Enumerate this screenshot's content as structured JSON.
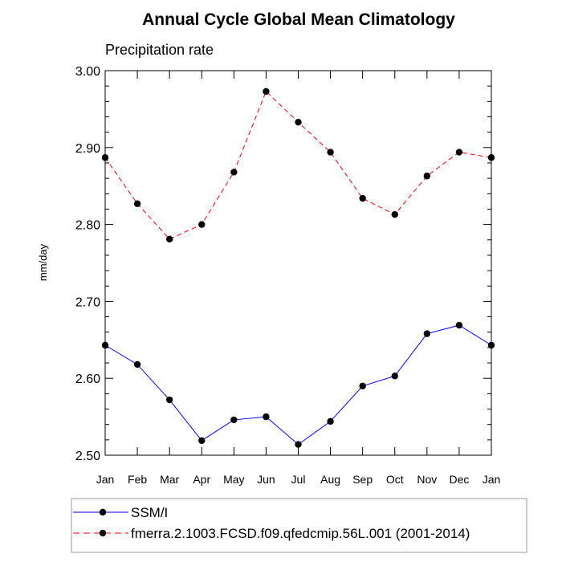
{
  "chart_data": {
    "type": "line",
    "title": "Annual Cycle Global Mean Climatology",
    "subtitle": "Precipitation rate",
    "xlabel": "",
    "ylabel": "mm/day",
    "ylim": [
      2.5,
      3.0
    ],
    "yticks": [
      "2.50",
      "2.60",
      "2.70",
      "2.80",
      "2.90",
      "3.00"
    ],
    "categories": [
      "Jan",
      "Feb",
      "Mar",
      "Apr",
      "May",
      "Jun",
      "Jul",
      "Aug",
      "Sep",
      "Oct",
      "Nov",
      "Dec",
      "Jan"
    ],
    "grid": false,
    "legend_position": "bottom",
    "series": [
      {
        "name": "SSM/I",
        "color": "#0000ff",
        "dash": "solid",
        "values": [
          2.643,
          2.618,
          2.572,
          2.519,
          2.546,
          2.55,
          2.514,
          2.544,
          2.59,
          2.603,
          2.658,
          2.669,
          2.643
        ]
      },
      {
        "name": "fmerra.2.1003.FCSD.f09.qfedcmip.56L.001 (2001-2014)",
        "color": "#ff0000",
        "dash": "dashed",
        "values": [
          2.887,
          2.827,
          2.781,
          2.8,
          2.868,
          2.973,
          2.933,
          2.894,
          2.834,
          2.813,
          2.863,
          2.894,
          2.887
        ]
      }
    ]
  }
}
